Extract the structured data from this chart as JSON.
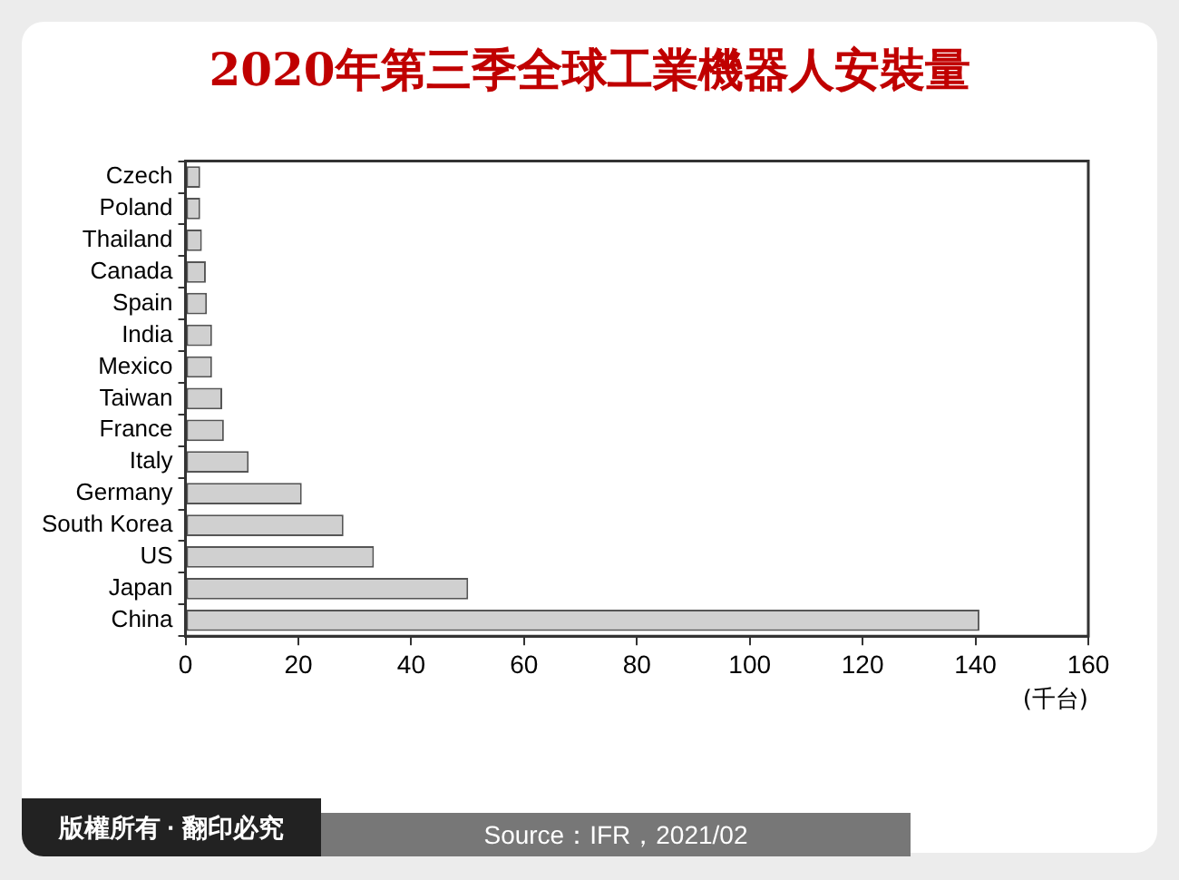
{
  "chart_data": {
    "type": "bar",
    "orientation": "horizontal",
    "title": "2020年第三季全球工業機器人安裝量",
    "xlabel": "(千台)",
    "categories": [
      "Czech",
      "Poland",
      "Thailand",
      "Canada",
      "Spain",
      "India",
      "Mexico",
      "Taiwan",
      "France",
      "Italy",
      "Germany",
      "South Korea",
      "US",
      "Japan",
      "China"
    ],
    "values": [
      2.6,
      2.6,
      2.9,
      3.6,
      3.8,
      4.7,
      4.7,
      6.5,
      6.8,
      11.2,
      20.6,
      28.0,
      33.4,
      50.1,
      140.7
    ],
    "color": "#d0d0d0",
    "xlim": [
      0,
      160
    ],
    "xticks": [
      0,
      20,
      40,
      60,
      80,
      100,
      120,
      140,
      160
    ],
    "grid": false,
    "legend": false,
    "annotations": [
      "版權所有 · 翻印必究",
      "Source：IFR，2021/02"
    ]
  }
}
